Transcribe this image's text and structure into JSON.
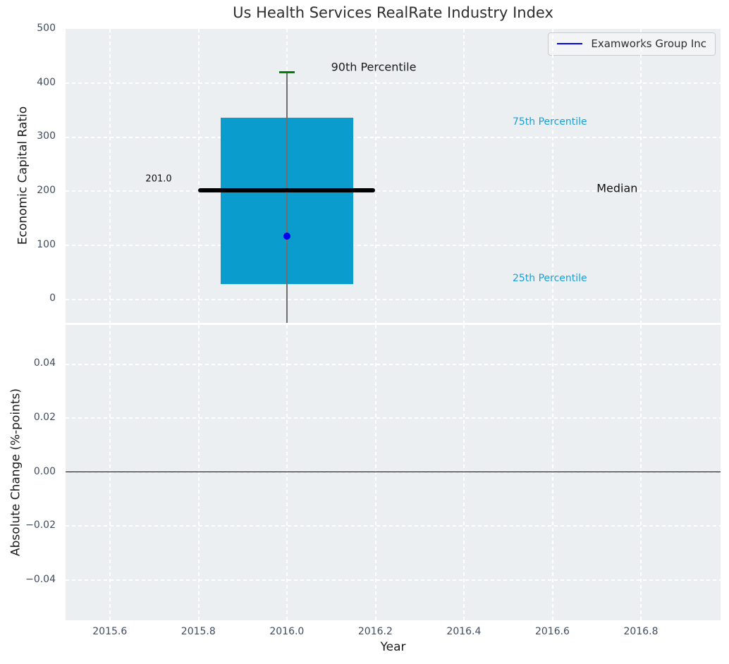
{
  "title": "Us Health Services RealRate Industry Index",
  "legend": {
    "label": "Examworks Group Inc",
    "line_color": "#0000ee"
  },
  "colors": {
    "plot_background": "#eceff1",
    "figure_background": "#ffffff",
    "grid": "#ffffff",
    "box_fill": "#0a9ccd",
    "median_line": "#000000",
    "whisker": "#6f6f6f",
    "p90_cap": "#008000",
    "company_point": "#0000ee",
    "tick_text": "#3f4c60",
    "percentile_text": "#1a9fd6",
    "zero_line": "#000000"
  },
  "chart_data": [
    {
      "type": "boxplot",
      "title": "Us Health Services RealRate Industry Index",
      "ylabel": "Economic Capital Ratio",
      "xlabel": "",
      "xlim": [
        2015.5,
        2016.98
      ],
      "ylim": [
        -44,
        500
      ],
      "grid": true,
      "legend_position": "upper right",
      "ytick_values": [
        0,
        100,
        200,
        300,
        400,
        500
      ],
      "ytick_labels": [
        "0",
        "100",
        "200",
        "300",
        "400",
        "500"
      ],
      "xtick_values": [
        2015.6,
        2015.8,
        2016.0,
        2016.2,
        2016.4,
        2016.6,
        2016.8
      ],
      "xtick_labels": [],
      "box": {
        "x": 2016,
        "box_width": 0.3,
        "q1": 28,
        "median": 201.0,
        "q3": 335,
        "p90": 420,
        "median_line_halfwidth": 0.2,
        "cap_halfwidth": 0.0175,
        "whisker_clipped_below_axis": true
      },
      "company_point": {
        "name": "Examworks Group Inc",
        "x": 2016,
        "y": 117
      },
      "annotations": [
        {
          "id": "p90-label",
          "text": "90th Percentile",
          "x": 2016.1,
          "y": 430,
          "color": "#1a1a1a",
          "size": 16,
          "anchor": "left"
        },
        {
          "id": "p75-label",
          "text": "75th Percentile",
          "x": 2016.51,
          "y": 328,
          "color": "#1a9fd6",
          "size": 14,
          "anchor": "left"
        },
        {
          "id": "median-label",
          "text": "Median",
          "x": 2016.7,
          "y": 205,
          "color": "#111111",
          "size": 16,
          "anchor": "left"
        },
        {
          "id": "p25-label",
          "text": "25th Percentile",
          "x": 2016.51,
          "y": 38,
          "color": "#1a9fd6",
          "size": 14,
          "anchor": "left"
        },
        {
          "id": "median-value",
          "text": "201.0",
          "x": 2015.74,
          "y": 222,
          "color": "#111111",
          "size": 13,
          "anchor": "right"
        }
      ]
    },
    {
      "type": "line",
      "ylabel": "Absolute Change (%-points)",
      "xlabel": "Year",
      "xlim": [
        2015.5,
        2016.98
      ],
      "ylim": [
        -0.055,
        0.0545
      ],
      "grid": true,
      "ytick_values": [
        0.04,
        0.02,
        0.0,
        -0.02,
        -0.04
      ],
      "ytick_labels": [
        "0.04",
        "0.02",
        "0.00",
        "−0.02",
        "−0.04"
      ],
      "xtick_values": [
        2015.6,
        2015.8,
        2016.0,
        2016.2,
        2016.4,
        2016.6,
        2016.8
      ],
      "xtick_labels": [
        "2015.6",
        "2015.8",
        "2016.0",
        "2016.2",
        "2016.4",
        "2016.6",
        "2016.8"
      ],
      "zero_line": 0.0,
      "series": []
    }
  ]
}
